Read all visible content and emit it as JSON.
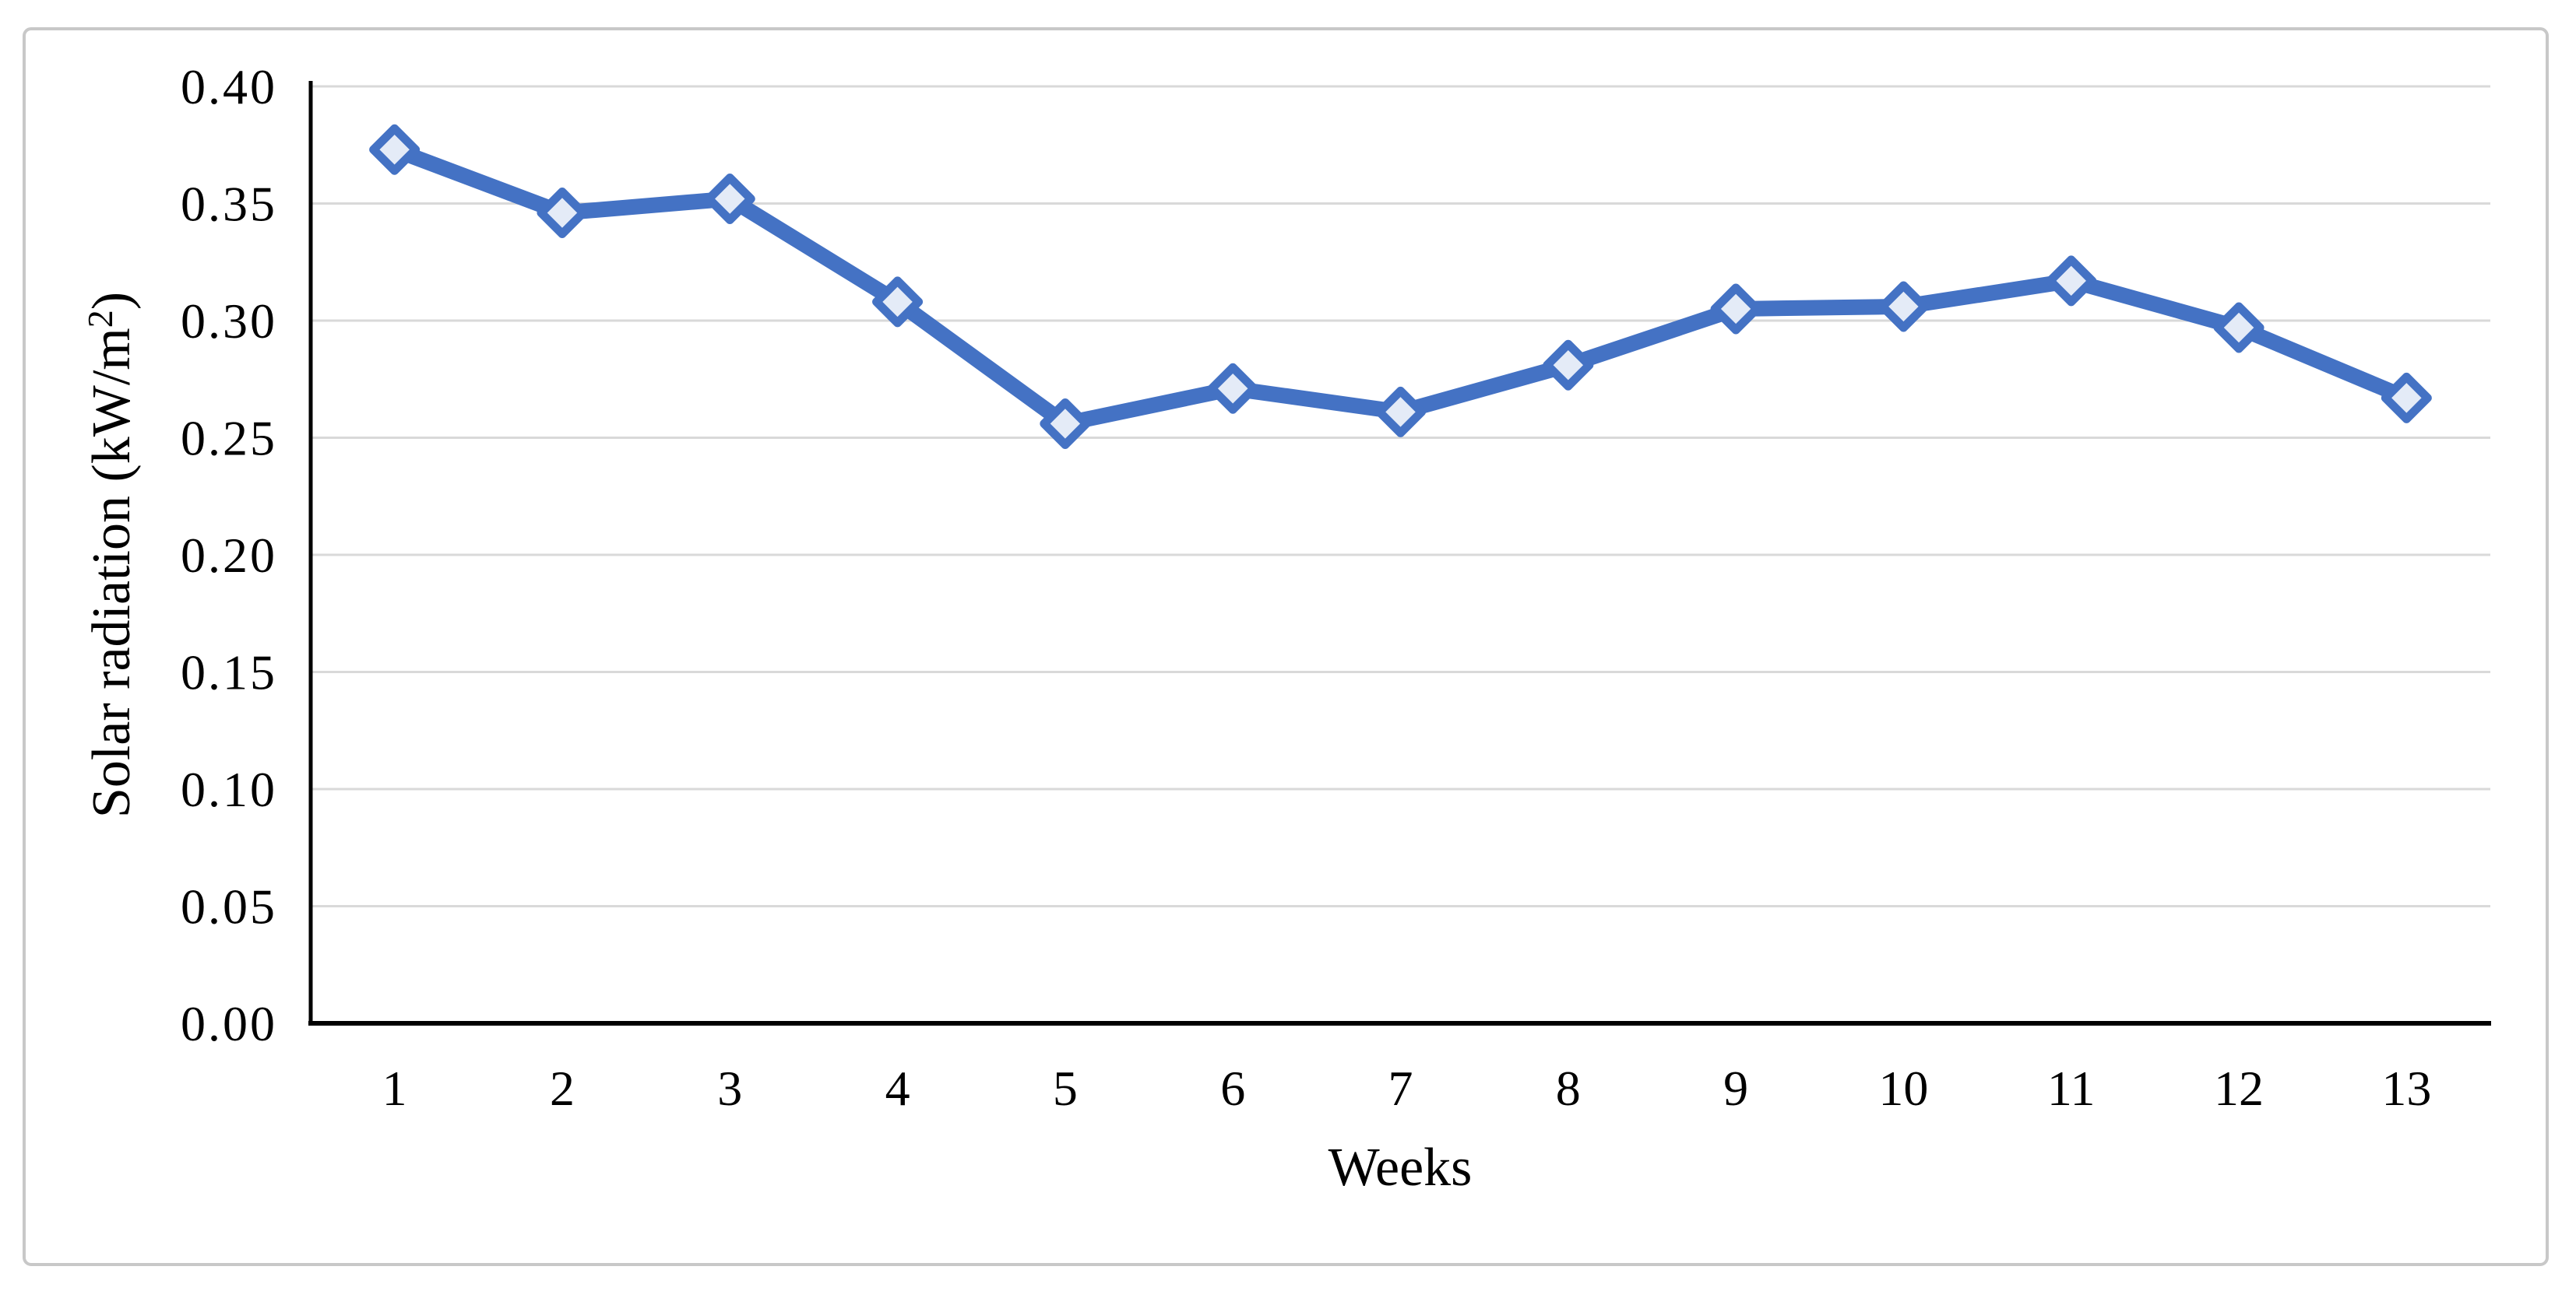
{
  "chart_data": {
    "type": "line",
    "title": "",
    "xlabel": "Weeks",
    "ylabel": "Solar radiation (kW/m²)",
    "ylabel_parts": {
      "pre": "Solar radiation (kW/m",
      "sup": "2",
      "post": ")"
    },
    "categories": [
      "1",
      "2",
      "3",
      "4",
      "5",
      "6",
      "7",
      "8",
      "9",
      "10",
      "11",
      "12",
      "13"
    ],
    "values": [
      0.373,
      0.346,
      0.352,
      0.308,
      0.256,
      0.271,
      0.261,
      0.281,
      0.305,
      0.306,
      0.317,
      0.297,
      0.267
    ],
    "series_name": "Solar radiation",
    "ylim": [
      0.0,
      0.4
    ],
    "ytick_step": 0.05,
    "y_tick_labels": [
      "0.00",
      "0.05",
      "0.10",
      "0.15",
      "0.20",
      "0.25",
      "0.30",
      "0.35",
      "0.40"
    ],
    "grid": "horizontal",
    "legend": "none",
    "marker": "diamond",
    "colors": {
      "line": "#4472C4",
      "marker_fill": "#E4EBF7",
      "gridline": "#D9D9D9",
      "axis": "#000000",
      "frame": "#C8C8C8",
      "background": "#FFFFFF",
      "text": "#000000"
    }
  }
}
